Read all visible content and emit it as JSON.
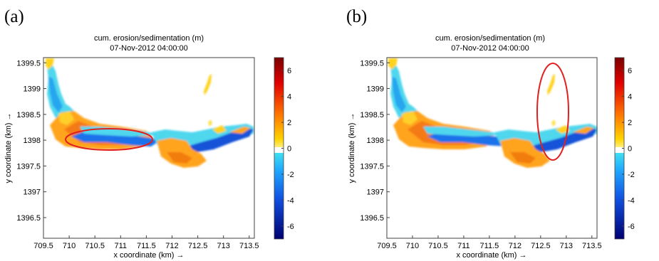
{
  "chart_data": [
    {
      "type": "heatmap",
      "panel_label": "(a)",
      "title": "cum. erosion/sedimentation (m)",
      "subtitle": "07-Nov-2012 04:00:00",
      "xlabel": "x coordinate (km) →",
      "ylabel": "y coordinate (km) →",
      "xlim": [
        709.5,
        713.6
      ],
      "ylim": [
        1396.1,
        1399.6
      ],
      "x_ticks": [
        "709.5",
        "710",
        "710.5",
        "711",
        "711.5",
        "712",
        "712.5",
        "713",
        "713.5"
      ],
      "y_ticks": [
        "1396.5",
        "1397",
        "1397.5",
        "1398",
        "1398.5",
        "1399",
        "1399.5"
      ],
      "colorbar": {
        "min": -7,
        "max": 7,
        "ticks": [
          "6",
          "4",
          "2",
          "0",
          "-2",
          "-4",
          "-6"
        ]
      },
      "annotation": {
        "shape": "ellipse",
        "color": "#e02020",
        "center": [
          710.85,
          1397.97
        ],
        "radii_km": [
          0.83,
          0.2
        ]
      }
    },
    {
      "type": "heatmap",
      "panel_label": "(b)",
      "title": "cum. erosion/sedimentation (m)",
      "subtitle": "07-Nov-2012 04:00:00",
      "xlabel": "x coordinate (km) →",
      "ylabel": "y coordinate (km) →",
      "xlim": [
        709.5,
        713.6
      ],
      "ylim": [
        1396.1,
        1399.6
      ],
      "x_ticks": [
        "709.5",
        "710",
        "710.5",
        "711",
        "711.5",
        "712",
        "712.5",
        "713",
        "713.5"
      ],
      "y_ticks": [
        "1396.5",
        "1397",
        "1397.5",
        "1398",
        "1398.5",
        "1399",
        "1399.5"
      ],
      "colorbar": {
        "min": -7,
        "max": 7,
        "ticks": [
          "6",
          "4",
          "2",
          "0",
          "-2",
          "-4",
          "-6"
        ]
      },
      "annotation": {
        "shape": "ellipse",
        "color": "#e02020",
        "center": [
          712.73,
          1398.48
        ],
        "radii_km": [
          0.3,
          0.95
        ]
      }
    }
  ]
}
